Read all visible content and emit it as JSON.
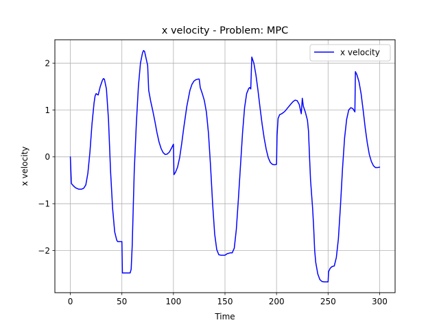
{
  "chart_data": {
    "type": "line",
    "title": "x velocity - Problem: MPC",
    "xlabel": "Time",
    "ylabel": "x velocity",
    "xlim": [
      -15,
      315
    ],
    "ylim": [
      -2.9,
      2.5
    ],
    "xticks": [
      0,
      50,
      100,
      150,
      200,
      250,
      300
    ],
    "xtick_labels": [
      "0",
      "50",
      "100",
      "150",
      "200",
      "250",
      "300"
    ],
    "yticks": [
      -2,
      -1,
      0,
      1,
      2
    ],
    "ytick_labels": [
      "−2",
      "−1",
      "0",
      "1",
      "2"
    ],
    "grid": true,
    "legend": {
      "position": "upper right"
    },
    "series": [
      {
        "name": "x velocity",
        "color": "#0000ff",
        "points": [
          [
            0,
            0.0
          ],
          [
            1,
            -0.57
          ],
          [
            3,
            -0.62
          ],
          [
            5,
            -0.66
          ],
          [
            8,
            -0.69
          ],
          [
            11,
            -0.69
          ],
          [
            13,
            -0.67
          ],
          [
            15,
            -0.6
          ],
          [
            17,
            -0.35
          ],
          [
            19,
            0.1
          ],
          [
            21,
            0.7
          ],
          [
            23,
            1.15
          ],
          [
            24,
            1.3
          ],
          [
            25,
            1.35
          ],
          [
            27,
            1.32
          ],
          [
            29,
            1.5
          ],
          [
            31,
            1.63
          ],
          [
            32,
            1.67
          ],
          [
            33,
            1.66
          ],
          [
            35,
            1.45
          ],
          [
            37,
            0.8
          ],
          [
            39,
            -0.3
          ],
          [
            41,
            -1.1
          ],
          [
            43,
            -1.6
          ],
          [
            45,
            -1.78
          ],
          [
            46,
            -1.81
          ],
          [
            48,
            -1.81
          ],
          [
            50,
            -1.81
          ],
          [
            50.5,
            -2.48
          ],
          [
            55,
            -2.48
          ],
          [
            58,
            -2.48
          ],
          [
            59,
            -2.4
          ],
          [
            60,
            -1.9
          ],
          [
            62,
            -0.3
          ],
          [
            64,
            0.7
          ],
          [
            66,
            1.5
          ],
          [
            68,
            2.0
          ],
          [
            70,
            2.22
          ],
          [
            71,
            2.27
          ],
          [
            72,
            2.25
          ],
          [
            74,
            2.05
          ],
          [
            75,
            1.95
          ],
          [
            76,
            1.42
          ],
          [
            78,
            1.18
          ],
          [
            80,
            0.98
          ],
          [
            82,
            0.76
          ],
          [
            84,
            0.52
          ],
          [
            86,
            0.32
          ],
          [
            88,
            0.18
          ],
          [
            90,
            0.09
          ],
          [
            92,
            0.05
          ],
          [
            94,
            0.06
          ],
          [
            96,
            0.1
          ],
          [
            98,
            0.18
          ],
          [
            100,
            0.27
          ],
          [
            100.5,
            -0.38
          ],
          [
            102,
            -0.33
          ],
          [
            104,
            -0.22
          ],
          [
            106,
            -0.02
          ],
          [
            108,
            0.28
          ],
          [
            110,
            0.62
          ],
          [
            113,
            1.08
          ],
          [
            116,
            1.42
          ],
          [
            118,
            1.55
          ],
          [
            120,
            1.62
          ],
          [
            122,
            1.65
          ],
          [
            124,
            1.66
          ],
          [
            125,
            1.66
          ],
          [
            126,
            1.48
          ],
          [
            128,
            1.35
          ],
          [
            130,
            1.2
          ],
          [
            132,
            0.95
          ],
          [
            134,
            0.5
          ],
          [
            136,
            -0.2
          ],
          [
            138,
            -1.0
          ],
          [
            140,
            -1.65
          ],
          [
            142,
            -1.98
          ],
          [
            144,
            -2.09
          ],
          [
            146,
            -2.1
          ],
          [
            150,
            -2.1
          ],
          [
            152,
            -2.07
          ],
          [
            155,
            -2.05
          ],
          [
            157,
            -2.05
          ],
          [
            159,
            -1.95
          ],
          [
            161,
            -1.55
          ],
          [
            163,
            -0.9
          ],
          [
            165,
            -0.2
          ],
          [
            167,
            0.5
          ],
          [
            169,
            1.05
          ],
          [
            171,
            1.35
          ],
          [
            173,
            1.46
          ],
          [
            174,
            1.48
          ],
          [
            175,
            1.45
          ],
          [
            176,
            2.13
          ],
          [
            178,
            2.0
          ],
          [
            180,
            1.75
          ],
          [
            182,
            1.42
          ],
          [
            184,
            1.05
          ],
          [
            186,
            0.7
          ],
          [
            188,
            0.4
          ],
          [
            190,
            0.16
          ],
          [
            192,
            -0.02
          ],
          [
            194,
            -0.12
          ],
          [
            196,
            -0.16
          ],
          [
            198,
            -0.17
          ],
          [
            200,
            -0.16
          ],
          [
            200.5,
            0.45
          ],
          [
            201.5,
            0.82
          ],
          [
            203,
            0.9
          ],
          [
            205,
            0.92
          ],
          [
            208,
            0.97
          ],
          [
            211,
            1.05
          ],
          [
            214,
            1.13
          ],
          [
            216,
            1.18
          ],
          [
            218,
            1.21
          ],
          [
            220,
            1.2
          ],
          [
            222,
            1.12
          ],
          [
            224,
            0.92
          ],
          [
            225,
            1.25
          ],
          [
            226,
            1.08
          ],
          [
            228,
            0.95
          ],
          [
            230,
            0.78
          ],
          [
            231,
            0.55
          ],
          [
            232,
            0.0
          ],
          [
            233,
            -0.5
          ],
          [
            235,
            -1.1
          ],
          [
            236,
            -1.5
          ],
          [
            237,
            -2.0
          ],
          [
            238,
            -2.25
          ],
          [
            240,
            -2.5
          ],
          [
            242,
            -2.62
          ],
          [
            244,
            -2.66
          ],
          [
            246,
            -2.67
          ],
          [
            250,
            -2.67
          ],
          [
            250.5,
            -2.45
          ],
          [
            252,
            -2.38
          ],
          [
            254,
            -2.34
          ],
          [
            256,
            -2.33
          ],
          [
            258,
            -2.15
          ],
          [
            260,
            -1.75
          ],
          [
            262,
            -1.05
          ],
          [
            264,
            -0.25
          ],
          [
            266,
            0.4
          ],
          [
            268,
            0.8
          ],
          [
            270,
            1.0
          ],
          [
            272,
            1.05
          ],
          [
            274,
            1.03
          ],
          [
            276,
            0.96
          ],
          [
            276.5,
            1.82
          ],
          [
            278,
            1.75
          ],
          [
            280,
            1.6
          ],
          [
            282,
            1.35
          ],
          [
            284,
            1.0
          ],
          [
            286,
            0.62
          ],
          [
            288,
            0.3
          ],
          [
            290,
            0.05
          ],
          [
            292,
            -0.1
          ],
          [
            294,
            -0.19
          ],
          [
            296,
            -0.23
          ],
          [
            298,
            -0.23
          ],
          [
            300,
            -0.22
          ]
        ]
      }
    ]
  }
}
